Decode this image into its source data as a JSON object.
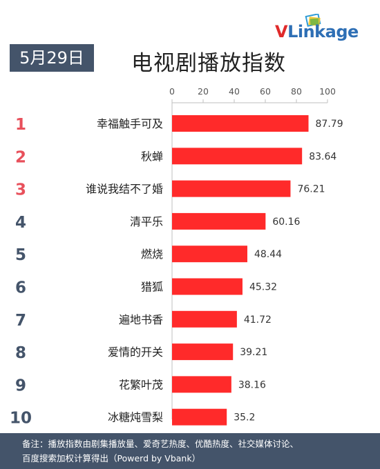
{
  "logo": {
    "text_first": "V",
    "text_rest": "Linkage"
  },
  "date_badge": "5月29日",
  "title": "电视剧播放指数",
  "footnote": {
    "line1": "备注：播放指数由剧集播放量、爱奇艺热度、优酷热度、社交媒体讨论、",
    "line2": "百度搜索加权计算得出（Powerd by Vbank）"
  },
  "colors": {
    "bar": "#ff2a2a",
    "rank_top3": "#e8505b",
    "rank_other": "#44546a",
    "badge": "#44546a"
  },
  "chart_data": {
    "type": "bar",
    "orientation": "horizontal",
    "title": "电视剧播放指数",
    "xlim": [
      0,
      100
    ],
    "x_ticks": [
      0,
      20,
      40,
      60,
      80,
      100
    ],
    "x_axis_position": "top",
    "grid": false,
    "ranks": [
      "1",
      "2",
      "3",
      "4",
      "5",
      "6",
      "7",
      "8",
      "9",
      "10"
    ],
    "categories": [
      "幸福触手可及",
      "秋蝉",
      "谁说我结不了婚",
      "清平乐",
      "燃烧",
      "猎狐",
      "遍地书香",
      "爱情的开关",
      "花繁叶茂",
      "冰糖炖雪梨"
    ],
    "values": [
      87.79,
      83.64,
      76.21,
      60.16,
      48.44,
      45.32,
      41.72,
      39.21,
      38.16,
      35.2
    ],
    "value_labels": [
      "87.79",
      "83.64",
      "76.21",
      "60.16",
      "48.44",
      "45.32",
      "41.72",
      "39.21",
      "38.16",
      "35.2"
    ]
  }
}
